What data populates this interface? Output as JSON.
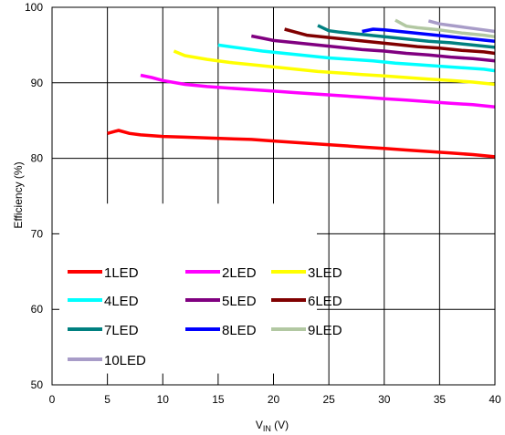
{
  "chart_data": {
    "type": "line",
    "xlabel": {
      "main": "V",
      "sub": "IN",
      "unit": " (V)"
    },
    "ylabel": "Efficiency (%)",
    "xlim": [
      0,
      40
    ],
    "ylim": [
      50,
      100
    ],
    "xticks": [
      0,
      5,
      10,
      15,
      20,
      25,
      30,
      35,
      40
    ],
    "yticks": [
      50,
      60,
      70,
      80,
      90,
      100
    ],
    "grid": true,
    "legend_position": "bottom-left",
    "series": [
      {
        "name": "1LED",
        "color": "#ff0000",
        "x": [
          5,
          6,
          7,
          8,
          10,
          12,
          14,
          16,
          18,
          20,
          22,
          24,
          26,
          28,
          30,
          32,
          34,
          36,
          38,
          40
        ],
        "y": [
          83.3,
          83.7,
          83.3,
          83.1,
          82.9,
          82.8,
          82.7,
          82.6,
          82.5,
          82.3,
          82.1,
          81.9,
          81.7,
          81.5,
          81.3,
          81.1,
          80.9,
          80.7,
          80.5,
          80.2
        ]
      },
      {
        "name": "2LED",
        "color": "#ff00ff",
        "x": [
          8,
          9,
          10,
          12,
          14,
          16,
          18,
          20,
          22,
          24,
          26,
          28,
          30,
          32,
          34,
          36,
          38,
          40
        ],
        "y": [
          91.0,
          90.7,
          90.3,
          89.8,
          89.5,
          89.3,
          89.1,
          88.9,
          88.7,
          88.5,
          88.3,
          88.1,
          87.9,
          87.7,
          87.5,
          87.3,
          87.1,
          86.8
        ]
      },
      {
        "name": "3LED",
        "color": "#ffff00",
        "x": [
          11,
          12,
          14,
          16,
          18,
          20,
          22,
          24,
          26,
          28,
          30,
          32,
          34,
          36,
          38,
          40
        ],
        "y": [
          94.2,
          93.6,
          93.1,
          92.7,
          92.4,
          92.1,
          91.8,
          91.5,
          91.3,
          91.1,
          90.9,
          90.7,
          90.5,
          90.3,
          90.1,
          89.8
        ]
      },
      {
        "name": "4LED",
        "color": "#00ffff",
        "x": [
          15,
          17,
          19,
          21,
          23,
          25,
          27,
          29,
          31,
          33,
          35,
          37,
          39,
          40
        ],
        "y": [
          95.0,
          94.6,
          94.2,
          93.9,
          93.6,
          93.3,
          93.1,
          92.9,
          92.6,
          92.4,
          92.2,
          92.0,
          91.8,
          91.6
        ]
      },
      {
        "name": "5LED",
        "color": "#800080",
        "x": [
          18,
          19,
          20,
          22,
          24,
          26,
          28,
          30,
          32,
          34,
          36,
          38,
          40
        ],
        "y": [
          96.2,
          95.9,
          95.6,
          95.3,
          95.0,
          94.7,
          94.4,
          94.2,
          93.9,
          93.7,
          93.4,
          93.2,
          92.9
        ]
      },
      {
        "name": "6LED",
        "color": "#800000",
        "x": [
          21,
          22,
          23,
          25,
          27,
          29,
          31,
          33,
          35,
          37,
          39,
          40
        ],
        "y": [
          97.1,
          96.7,
          96.3,
          96.0,
          95.7,
          95.4,
          95.1,
          94.8,
          94.6,
          94.3,
          94.1,
          93.9
        ]
      },
      {
        "name": "7LED",
        "color": "#008080",
        "x": [
          24,
          25,
          26,
          28,
          30,
          32,
          34,
          36,
          38,
          40
        ],
        "y": [
          97.6,
          96.9,
          96.7,
          96.4,
          96.1,
          95.8,
          95.5,
          95.3,
          95.0,
          94.7
        ]
      },
      {
        "name": "8LED",
        "color": "#0000ff",
        "x": [
          28,
          29,
          30,
          32,
          34,
          36,
          38,
          40
        ],
        "y": [
          96.8,
          97.1,
          97.0,
          96.7,
          96.4,
          96.1,
          95.8,
          95.5
        ]
      },
      {
        "name": "9LED",
        "color": "#b2c8a2",
        "x": [
          31,
          32,
          33,
          35,
          37,
          39,
          40
        ],
        "y": [
          98.3,
          97.5,
          97.3,
          97.0,
          96.6,
          96.3,
          96.1
        ]
      },
      {
        "name": "10LED",
        "color": "#a89cc8",
        "x": [
          34,
          35,
          36,
          37,
          38,
          39,
          40
        ],
        "y": [
          98.2,
          97.8,
          97.6,
          97.4,
          97.2,
          97.0,
          96.8
        ]
      }
    ]
  }
}
